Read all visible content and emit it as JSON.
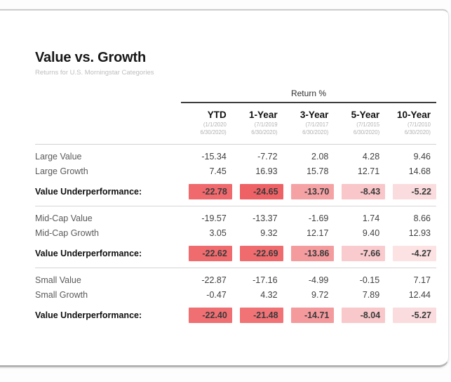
{
  "chart_data": {
    "type": "table",
    "title": "Value vs. Growth",
    "subtitle": "Returns for U.S. Morningstar Categories",
    "unit_header": "Return %",
    "columns": [
      "YTD",
      "1-Year",
      "3-Year",
      "5-Year",
      "10-Year"
    ],
    "column_periods": [
      [
        "(1/1/2020",
        "6/30/2020)"
      ],
      [
        "(7/1/2019",
        "6/30/2020)"
      ],
      [
        "(7/1/2017",
        "6/30/2020)"
      ],
      [
        "(7/1/2015",
        "6/30/2020)"
      ],
      [
        "(7/1/2010",
        "6/30/2020)"
      ]
    ],
    "rows": [
      {
        "label": "Large Value",
        "kind": "data",
        "group_start": true,
        "values": [
          -15.34,
          -7.72,
          2.08,
          4.28,
          9.46
        ]
      },
      {
        "label": "Large Growth",
        "kind": "data",
        "values": [
          7.45,
          16.93,
          15.78,
          12.71,
          14.68
        ]
      },
      {
        "label": "Value Underperformance:",
        "kind": "summary",
        "separator_after": true,
        "values": [
          -22.78,
          -24.65,
          -13.7,
          -8.43,
          -5.22
        ],
        "highlight_colors": [
          "#F0696D",
          "#EE6165",
          "#F5A2A5",
          "#F9C6C9",
          "#FBDCDE"
        ]
      },
      {
        "label": "Mid-Cap Value",
        "kind": "data",
        "group_start": true,
        "values": [
          -19.57,
          -13.37,
          -1.69,
          1.74,
          8.66
        ]
      },
      {
        "label": "Mid-Cap Growth",
        "kind": "data",
        "values": [
          3.05,
          9.32,
          12.17,
          9.4,
          12.93
        ]
      },
      {
        "label": "Value Underperformance:",
        "kind": "summary",
        "separator_after": true,
        "values": [
          -22.62,
          -22.69,
          -13.86,
          -7.66,
          -4.27
        ],
        "highlight_colors": [
          "#F06B6E",
          "#F06B6E",
          "#F49B9E",
          "#F9CBCE",
          "#FCE2E3"
        ]
      },
      {
        "label": "Small Value",
        "kind": "data",
        "group_start": true,
        "values": [
          -22.87,
          -17.16,
          -4.99,
          -0.15,
          7.17
        ]
      },
      {
        "label": "Small Growth",
        "kind": "data",
        "values": [
          -0.47,
          4.32,
          9.72,
          7.89,
          12.44
        ]
      },
      {
        "label": "Value Underperformance:",
        "kind": "summary",
        "separator_after": false,
        "values": [
          -22.4,
          -21.48,
          -14.71,
          -8.04,
          -5.27
        ],
        "highlight_colors": [
          "#F06F72",
          "#F17376",
          "#F4999C",
          "#F9C8CB",
          "#FBDCDE"
        ]
      }
    ],
    "colors": {
      "strong_negative": "#F0696D",
      "mild_negative": "#FBDCDE",
      "header_rule": "#3d3d3d",
      "row_rule": "#d2d2d2"
    },
    "value_precision": 2
  }
}
